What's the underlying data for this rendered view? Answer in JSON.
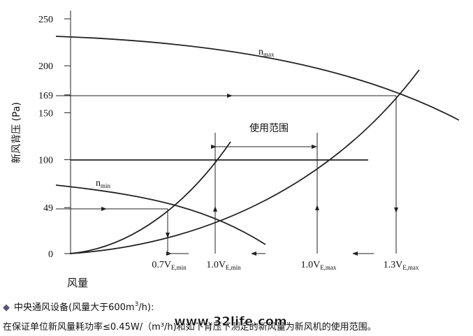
{
  "diagram": {
    "y_axis": {
      "label": "新风背压 (Pa)",
      "ylim": [
        0,
        250
      ],
      "ticks": [
        0,
        49,
        100,
        150,
        169,
        200,
        250
      ]
    },
    "x_axis": {
      "label": "风量",
      "ticks": [
        {
          "main": "0.7V",
          "sub": "E,min"
        },
        {
          "main": "1.0V",
          "sub": "E,min"
        },
        {
          "main": "1.0V",
          "sub": "E,max"
        },
        {
          "main": "1.3V",
          "sub": "E,max"
        }
      ]
    },
    "curves": [
      {
        "main": "n",
        "sub": "max"
      },
      {
        "main": "n",
        "sub": "min"
      }
    ],
    "range_label": "使用范围",
    "notes": {
      "line1": {
        "bullet": "◆",
        "text": "中央通风设备(风量大于600m",
        "sup": "3",
        "tail": "/h):"
      },
      "line2": "在保证单位新风量耗功率≤0.45W/（m³/h)和如下背压下测定的新风量为新风机的使用范围。",
      "watermark": "www.32life.com"
    }
  }
}
